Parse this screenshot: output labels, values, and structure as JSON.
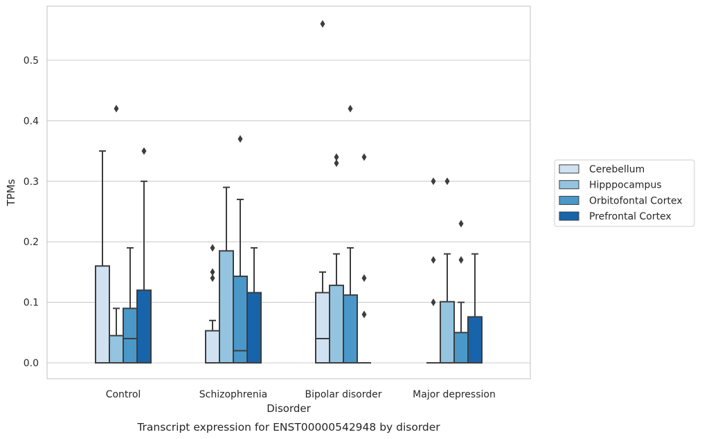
{
  "chart_data": {
    "type": "box",
    "caption": "Transcript expression for ENST00000542948 by disorder",
    "xlabel": "Disorder",
    "ylabel": "TPMs",
    "ylim": [
      -0.028,
      0.59
    ],
    "yticks": [
      0.0,
      0.1,
      0.2,
      0.3,
      0.4,
      0.5
    ],
    "ytick_labels": [
      "0.0",
      "0.1",
      "0.2",
      "0.3",
      "0.4",
      "0.5"
    ],
    "grid": true,
    "legend_position": "right",
    "categories": [
      "Control",
      "Schizophrenia",
      "Bipolar disorder",
      "Major depression"
    ],
    "series": [
      {
        "name": "Cerebellum",
        "color": "#d0e1f2",
        "boxes": [
          {
            "q1": 0.0,
            "median": 0.0,
            "q3": 0.16,
            "whisker_low": 0.0,
            "whisker_high": 0.35,
            "outliers": []
          },
          {
            "q1": 0.0,
            "median": 0.0,
            "q3": 0.053,
            "whisker_low": 0.0,
            "whisker_high": 0.07,
            "outliers": [
              0.14,
              0.15,
              0.19
            ]
          },
          {
            "q1": 0.0,
            "median": 0.04,
            "q3": 0.116,
            "whisker_low": 0.0,
            "whisker_high": 0.15,
            "outliers": [
              0.56
            ]
          },
          {
            "q1": 0.0,
            "median": 0.0,
            "q3": 0.0,
            "whisker_low": 0.0,
            "whisker_high": 0.0,
            "outliers": [
              0.1,
              0.17,
              0.3
            ]
          }
        ]
      },
      {
        "name": "Hipppocampus",
        "color": "#94c4df",
        "boxes": [
          {
            "q1": 0.0,
            "median": 0.0,
            "q3": 0.045,
            "whisker_low": 0.0,
            "whisker_high": 0.09,
            "outliers": [
              0.42
            ]
          },
          {
            "q1": 0.0,
            "median": 0.0,
            "q3": 0.185,
            "whisker_low": 0.0,
            "whisker_high": 0.29,
            "outliers": []
          },
          {
            "q1": 0.0,
            "median": 0.0,
            "q3": 0.128,
            "whisker_low": 0.0,
            "whisker_high": 0.18,
            "outliers": [
              0.33,
              0.34
            ]
          },
          {
            "q1": 0.0,
            "median": 0.0,
            "q3": 0.101,
            "whisker_low": 0.0,
            "whisker_high": 0.18,
            "outliers": [
              0.3
            ]
          }
        ]
      },
      {
        "name": "Orbitofontal Cortex",
        "color": "#4a98c9",
        "boxes": [
          {
            "q1": 0.0,
            "median": 0.04,
            "q3": 0.09,
            "whisker_low": 0.0,
            "whisker_high": 0.19,
            "outliers": []
          },
          {
            "q1": 0.0,
            "median": 0.02,
            "q3": 0.143,
            "whisker_low": 0.0,
            "whisker_high": 0.27,
            "outliers": [
              0.37
            ]
          },
          {
            "q1": 0.0,
            "median": 0.0,
            "q3": 0.112,
            "whisker_low": 0.0,
            "whisker_high": 0.19,
            "outliers": [
              0.42
            ]
          },
          {
            "q1": 0.0,
            "median": 0.0,
            "q3": 0.05,
            "whisker_low": 0.0,
            "whisker_high": 0.1,
            "outliers": [
              0.17,
              0.23
            ]
          }
        ]
      },
      {
        "name": "Prefrontal Cortex",
        "color": "#1764ab",
        "boxes": [
          {
            "q1": 0.0,
            "median": 0.0,
            "q3": 0.12,
            "whisker_low": 0.0,
            "whisker_high": 0.3,
            "outliers": [
              0.35
            ]
          },
          {
            "q1": 0.0,
            "median": 0.0,
            "q3": 0.116,
            "whisker_low": 0.0,
            "whisker_high": 0.19,
            "outliers": []
          },
          {
            "q1": 0.0,
            "median": 0.0,
            "q3": 0.0,
            "whisker_low": 0.0,
            "whisker_high": 0.0,
            "outliers": [
              0.08,
              0.14,
              0.34
            ]
          },
          {
            "q1": 0.0,
            "median": 0.0,
            "q3": 0.076,
            "whisker_low": 0.0,
            "whisker_high": 0.18,
            "outliers": []
          }
        ]
      }
    ]
  }
}
